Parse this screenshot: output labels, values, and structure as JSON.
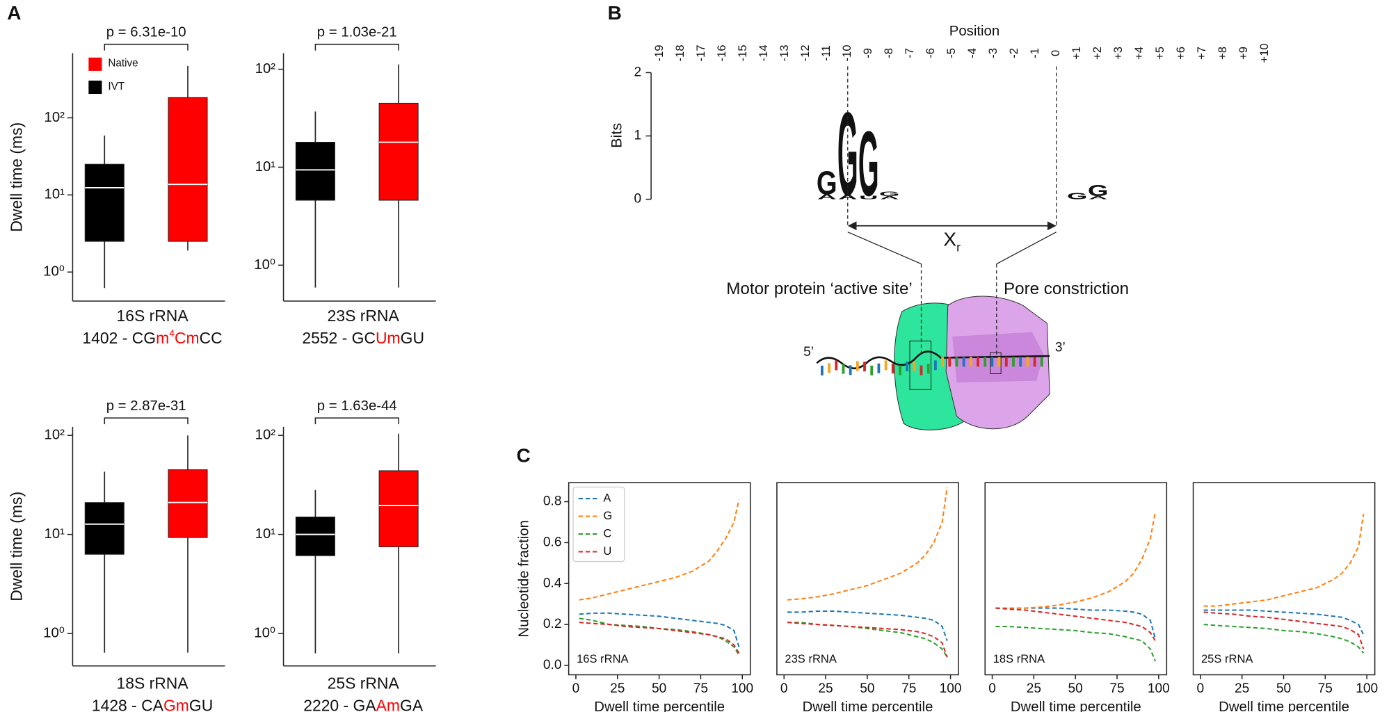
{
  "panel_labels": [
    "A",
    "B",
    "C"
  ],
  "chart_data": [
    {
      "type": "box",
      "log_y": true,
      "ylabel": "Dwell time (ms)",
      "ylim": [
        0.42,
        690
      ],
      "yticks": [
        {
          "value": 1,
          "label": "10⁰"
        },
        {
          "value": 10,
          "label": "10¹"
        },
        {
          "value": 100,
          "label": "10²"
        }
      ],
      "annotation": "p = 6.31e-10",
      "legend": true,
      "title": "16S rRNA",
      "caption": [
        {
          "text": "1402 - CG"
        },
        {
          "text": "m",
          "highlight": true
        },
        {
          "text": "4",
          "highlight": true,
          "sup": true
        },
        {
          "text": "Cm",
          "highlight": true
        },
        {
          "text": "CC"
        }
      ],
      "series": [
        {
          "name": "IVT",
          "color": "#000000",
          "median_color": "#ffffff",
          "min": 0.62,
          "q1": 2.5,
          "median": 12.4,
          "q3": 25,
          "max": 59
        },
        {
          "name": "Native",
          "color": "#ff0000",
          "median_color": "#ffffff",
          "min": 1.9,
          "q1": 2.5,
          "median": 13.7,
          "q3": 183,
          "max": 470
        }
      ]
    },
    {
      "type": "box",
      "log_y": true,
      "ylim": [
        0.43,
        146
      ],
      "yticks": [
        {
          "value": 1,
          "label": "10⁰"
        },
        {
          "value": 10,
          "label": "10¹"
        },
        {
          "value": 100,
          "label": "10²"
        }
      ],
      "annotation": "p = 1.03e-21",
      "title": "23S rRNA",
      "caption": [
        {
          "text": "2552 - GC"
        },
        {
          "text": "Um",
          "highlight": true
        },
        {
          "text": "GU"
        }
      ],
      "series": [
        {
          "color": "#000000",
          "median_color": "#ffffff",
          "min": 0.59,
          "q1": 4.6,
          "median": 9.4,
          "q3": 18,
          "max": 37
        },
        {
          "color": "#ff0000",
          "median_color": "#ffffff",
          "min": 0.59,
          "q1": 4.6,
          "median": 18,
          "q3": 45,
          "max": 112
        }
      ]
    },
    {
      "type": "box",
      "log_y": true,
      "ylabel": "Dwell time (ms)",
      "ylim": [
        0.47,
        122
      ],
      "yticks": [
        {
          "value": 1,
          "label": "10⁰"
        },
        {
          "value": 10,
          "label": "10¹"
        },
        {
          "value": 100,
          "label": "10²"
        }
      ],
      "annotation": "p = 2.87e-31",
      "title": "18S rRNA",
      "caption": [
        {
          "text": "1428 - CA"
        },
        {
          "text": "Gm",
          "highlight": true
        },
        {
          "text": "GU"
        }
      ],
      "series": [
        {
          "color": "#000000",
          "median_color": "#ffffff",
          "min": 0.64,
          "q1": 6.3,
          "median": 12.7,
          "q3": 21,
          "max": 43
        },
        {
          "color": "#ff0000",
          "median_color": "#ffffff",
          "min": 0.64,
          "q1": 9.3,
          "median": 21,
          "q3": 45,
          "max": 100
        }
      ]
    },
    {
      "type": "box",
      "log_y": true,
      "ylim": [
        0.47,
        122
      ],
      "yticks": [
        {
          "value": 1,
          "label": "10⁰"
        },
        {
          "value": 10,
          "label": "10¹"
        },
        {
          "value": 100,
          "label": "10²"
        }
      ],
      "annotation": "p = 1.63e-44",
      "title": "25S rRNA",
      "caption": [
        {
          "text": "2220 - GA"
        },
        {
          "text": "Am",
          "highlight": true
        },
        {
          "text": "GA"
        }
      ],
      "series": [
        {
          "color": "#000000",
          "median_color": "#ffffff",
          "min": 0.63,
          "q1": 6.1,
          "median": 10,
          "q3": 15,
          "max": 28
        },
        {
          "color": "#ff0000",
          "median_color": "#ffffff",
          "min": 0.63,
          "q1": 7.5,
          "median": 19.6,
          "q3": 44,
          "max": 104
        }
      ]
    },
    {
      "type": "line",
      "dashed": true,
      "ylabel": "Nucleotide fraction",
      "xlabel": "Dwell time percentile",
      "annotation": "16S rRNA",
      "legend": "upper left",
      "xlim": [
        -4.3,
        104.8
      ],
      "xticks": [
        0,
        25,
        50,
        75,
        100
      ],
      "ylim": [
        -0.046,
        0.893
      ],
      "yticks": [
        {
          "value": 0,
          "label": "0.0"
        },
        0.2,
        0.4,
        0.6,
        0.8
      ],
      "x": [
        2,
        10,
        20,
        30,
        40,
        50,
        60,
        70,
        80,
        85,
        90,
        95,
        98
      ],
      "series": [
        {
          "name": "A",
          "color": "#1f77b4",
          "values": [
            0.25,
            0.255,
            0.255,
            0.25,
            0.245,
            0.24,
            0.23,
            0.22,
            0.21,
            0.205,
            0.195,
            0.17,
            0.09
          ]
        },
        {
          "name": "G",
          "color": "#ff7f0e",
          "values": [
            0.32,
            0.33,
            0.35,
            0.37,
            0.39,
            0.41,
            0.43,
            0.46,
            0.51,
            0.56,
            0.62,
            0.7,
            0.81
          ]
        },
        {
          "name": "C",
          "color": "#2ca02c",
          "values": [
            0.23,
            0.22,
            0.2,
            0.195,
            0.19,
            0.18,
            0.175,
            0.165,
            0.15,
            0.14,
            0.12,
            0.09,
            0.05
          ]
        },
        {
          "name": "U",
          "color": "#d62728",
          "values": [
            0.21,
            0.205,
            0.2,
            0.19,
            0.185,
            0.18,
            0.17,
            0.16,
            0.15,
            0.14,
            0.13,
            0.1,
            0.06
          ]
        }
      ]
    },
    {
      "type": "line",
      "dashed": true,
      "xlabel": "Dwell time percentile",
      "annotation": "23S rRNA",
      "xlim": [
        -4.3,
        104.8
      ],
      "xticks": [
        0,
        25,
        50,
        75,
        100
      ],
      "ylim": [
        -0.046,
        0.893
      ],
      "x": [
        2,
        10,
        20,
        30,
        40,
        50,
        60,
        70,
        80,
        85,
        90,
        95,
        98
      ],
      "series": [
        {
          "color": "#1f77b4",
          "values": [
            0.26,
            0.26,
            0.265,
            0.265,
            0.26,
            0.255,
            0.25,
            0.245,
            0.235,
            0.23,
            0.22,
            0.19,
            0.12
          ]
        },
        {
          "color": "#ff7f0e",
          "values": [
            0.32,
            0.325,
            0.335,
            0.35,
            0.37,
            0.39,
            0.42,
            0.45,
            0.5,
            0.54,
            0.6,
            0.7,
            0.87
          ]
        },
        {
          "color": "#2ca02c",
          "values": [
            0.21,
            0.21,
            0.2,
            0.195,
            0.19,
            0.18,
            0.17,
            0.16,
            0.14,
            0.13,
            0.11,
            0.08,
            0.04
          ]
        },
        {
          "color": "#d62728",
          "values": [
            0.21,
            0.205,
            0.2,
            0.195,
            0.19,
            0.185,
            0.18,
            0.175,
            0.165,
            0.155,
            0.14,
            0.11,
            0.04
          ]
        }
      ]
    },
    {
      "type": "line",
      "dashed": true,
      "xlabel": "Dwell time percentile",
      "annotation": "18S rRNA",
      "xlim": [
        -4.3,
        104.8
      ],
      "xticks": [
        0,
        25,
        50,
        75,
        100
      ],
      "ylim": [
        -0.046,
        0.893
      ],
      "x": [
        2,
        10,
        20,
        30,
        40,
        50,
        60,
        70,
        80,
        85,
        90,
        95,
        98
      ],
      "series": [
        {
          "color": "#1f77b4",
          "values": [
            0.28,
            0.28,
            0.28,
            0.28,
            0.28,
            0.275,
            0.27,
            0.27,
            0.265,
            0.26,
            0.25,
            0.22,
            0.13
          ]
        },
        {
          "color": "#ff7f0e",
          "values": [
            0.28,
            0.28,
            0.28,
            0.285,
            0.295,
            0.31,
            0.33,
            0.36,
            0.41,
            0.45,
            0.52,
            0.62,
            0.75
          ]
        },
        {
          "color": "#2ca02c",
          "values": [
            0.19,
            0.19,
            0.185,
            0.18,
            0.175,
            0.17,
            0.16,
            0.155,
            0.14,
            0.13,
            0.12,
            0.08,
            0.02
          ]
        },
        {
          "color": "#d62728",
          "values": [
            0.28,
            0.275,
            0.27,
            0.26,
            0.25,
            0.24,
            0.23,
            0.22,
            0.21,
            0.2,
            0.19,
            0.16,
            0.12
          ]
        }
      ]
    },
    {
      "type": "line",
      "dashed": true,
      "xlabel": "Dwell time percentile",
      "annotation": "25S rRNA",
      "xlim": [
        -4.3,
        104.8
      ],
      "xticks": [
        0,
        25,
        50,
        75,
        100
      ],
      "ylim": [
        -0.046,
        0.893
      ],
      "x": [
        2,
        10,
        20,
        30,
        40,
        50,
        60,
        70,
        80,
        85,
        90,
        95,
        98
      ],
      "series": [
        {
          "color": "#1f77b4",
          "values": [
            0.27,
            0.27,
            0.27,
            0.27,
            0.265,
            0.26,
            0.255,
            0.25,
            0.24,
            0.235,
            0.22,
            0.2,
            0.15
          ]
        },
        {
          "color": "#ff7f0e",
          "values": [
            0.29,
            0.29,
            0.3,
            0.31,
            0.32,
            0.34,
            0.36,
            0.38,
            0.42,
            0.45,
            0.5,
            0.58,
            0.74
          ]
        },
        {
          "color": "#2ca02c",
          "values": [
            0.2,
            0.195,
            0.19,
            0.185,
            0.18,
            0.17,
            0.165,
            0.155,
            0.14,
            0.13,
            0.115,
            0.09,
            0.06
          ]
        },
        {
          "color": "#d62728",
          "values": [
            0.26,
            0.255,
            0.25,
            0.24,
            0.235,
            0.225,
            0.215,
            0.205,
            0.195,
            0.19,
            0.175,
            0.15,
            0.08
          ]
        }
      ]
    }
  ],
  "diagram": {
    "position_label": "Position",
    "positions": [
      "-19",
      "-18",
      "-17",
      "-16",
      "-15",
      "-14",
      "-13",
      "-12",
      "-11",
      "-10",
      "-9",
      "-8",
      "-7",
      "-6",
      "-5",
      "-4",
      "-3",
      "-2",
      "-1",
      "0",
      "+1",
      "+2",
      "+3",
      "+4",
      "+5",
      "+6",
      "+7",
      "+8",
      "+9",
      "+10"
    ],
    "bits_label": "Bits",
    "bits_ticks": [
      0,
      1,
      2
    ],
    "logo": [
      {
        "position": 8,
        "letters": [
          {
            "letter": "A",
            "bits": 0.08,
            "color": "#2ca02c"
          },
          {
            "letter": "G",
            "bits": 0.38,
            "color": "#f5a623"
          }
        ]
      },
      {
        "position": 9,
        "letters": [
          {
            "letter": "A",
            "bits": 0.07,
            "color": "#2ca02c"
          },
          {
            "letter": "G",
            "bits": 1.35,
            "color": "#f5a623"
          }
        ]
      },
      {
        "position": 10,
        "letters": [
          {
            "letter": "U",
            "bits": 0.06,
            "color": "#d62728"
          },
          {
            "letter": "G",
            "bits": 1.05,
            "color": "#f5a623"
          }
        ]
      },
      {
        "position": 11,
        "letters": [
          {
            "letter": "A",
            "bits": 0.05,
            "color": "#2ca02c"
          },
          {
            "letter": "G",
            "bits": 0.07,
            "color": "#f5a623"
          }
        ]
      },
      {
        "position": 20,
        "letters": [
          {
            "letter": "G",
            "bits": 0.1,
            "color": "#f5a623"
          }
        ]
      },
      {
        "position": 21,
        "letters": [
          {
            "letter": "A",
            "bits": 0.05,
            "color": "#2ca02c"
          },
          {
            "letter": "G",
            "bits": 0.18,
            "color": "#f5a623"
          }
        ]
      }
    ],
    "span_from": 9,
    "span_to": 19,
    "distance_label": "X",
    "distance_sub": "r",
    "motor_label": "Motor protein ‘active site’",
    "pore_label": "Pore constriction",
    "five_prime": "5’",
    "three_prime": "3’"
  }
}
